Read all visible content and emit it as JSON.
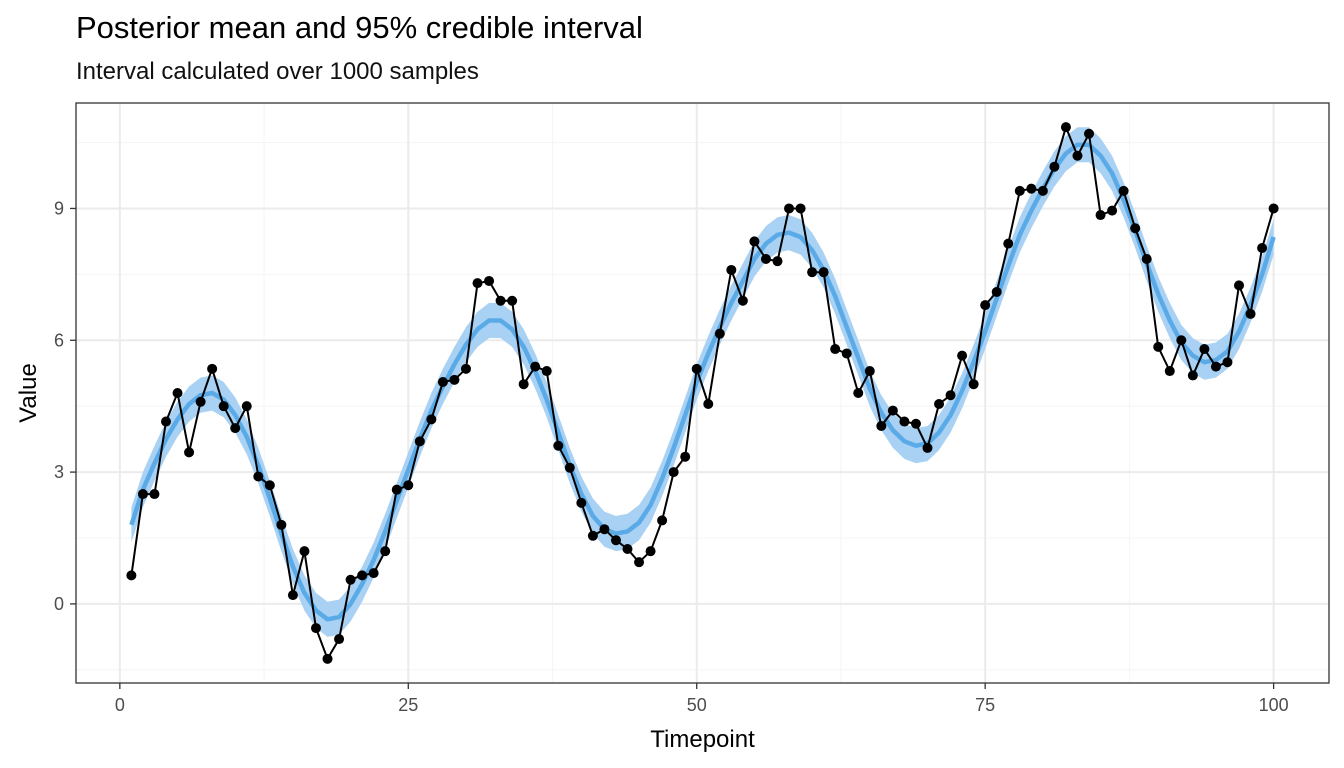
{
  "chart_data": {
    "type": "line",
    "title": "Posterior mean and 95% credible interval",
    "subtitle": "Interval calculated over 1000 samples",
    "xlabel": "Timepoint",
    "ylabel": "Value",
    "xlim": [
      -3.8,
      104.8
    ],
    "ylim": [
      -1.8,
      11.4
    ],
    "x_ticks": [
      0,
      25,
      50,
      75,
      100
    ],
    "y_ticks": [
      0,
      3,
      6,
      9
    ],
    "grid": true,
    "theme": "black-and-white",
    "colors": {
      "observed": "#000000",
      "posterior_mean": "#5aaae8",
      "credible_band": "#a9d1f3",
      "panel_border": "#333333",
      "grid_major": "#ebebeb",
      "grid_minor": "#f5f5f5"
    },
    "series": [
      {
        "kind": "observed",
        "x": [
          1,
          2,
          3,
          4,
          5,
          6,
          7,
          8,
          9,
          10,
          11,
          12,
          13,
          14,
          15,
          16,
          17,
          18,
          19,
          20,
          21,
          22,
          23,
          24,
          25,
          26,
          27,
          28,
          29,
          30,
          31,
          32,
          33,
          34,
          35,
          36,
          37,
          38,
          39,
          40,
          41,
          42,
          43,
          44,
          45,
          46,
          47,
          48,
          49,
          50,
          51,
          52,
          53,
          54,
          55,
          56,
          57,
          58,
          59,
          60,
          61,
          62,
          63,
          64,
          65,
          66,
          67,
          68,
          69,
          70,
          71,
          72,
          73,
          74,
          75,
          76,
          77,
          78,
          79,
          80,
          81,
          82,
          83,
          84,
          85,
          86,
          87,
          88,
          89,
          90,
          91,
          92,
          93,
          94,
          95,
          96,
          97,
          98,
          99,
          100
        ],
        "y": [
          0.65,
          2.5,
          2.5,
          4.15,
          4.8,
          3.45,
          4.6,
          5.35,
          4.5,
          4.0,
          4.5,
          2.9,
          2.7,
          1.8,
          0.2,
          1.2,
          -0.55,
          -1.25,
          -0.8,
          0.55,
          0.65,
          0.7,
          1.2,
          2.6,
          2.7,
          3.7,
          4.2,
          5.05,
          5.1,
          5.35,
          7.3,
          7.35,
          6.9,
          6.9,
          5.0,
          5.4,
          5.3,
          3.6,
          3.1,
          2.3,
          1.55,
          1.7,
          1.45,
          1.25,
          0.95,
          1.2,
          1.9,
          3.0,
          3.35,
          5.35,
          4.55,
          6.15,
          7.6,
          6.9,
          8.25,
          7.85,
          7.8,
          9.0,
          9.0,
          7.55,
          7.55,
          5.8,
          5.7,
          4.8,
          5.3,
          4.05,
          4.4,
          4.15,
          4.1,
          3.55,
          4.55,
          4.75,
          5.65,
          5.0,
          6.8,
          7.1,
          8.2,
          9.4,
          9.45,
          9.4,
          9.95,
          10.85,
          10.2,
          10.7,
          8.85,
          8.95,
          9.4,
          8.55,
          7.85,
          5.85,
          5.3,
          6.0,
          5.2,
          5.8,
          5.4,
          5.5,
          7.25,
          6.6,
          8.1,
          9.0
        ]
      },
      {
        "kind": "posterior-mean",
        "x": [
          1,
          2,
          3,
          4,
          5,
          6,
          7,
          8,
          9,
          10,
          11,
          12,
          13,
          14,
          15,
          16,
          17,
          18,
          19,
          20,
          21,
          22,
          23,
          24,
          25,
          26,
          27,
          28,
          29,
          30,
          31,
          32,
          33,
          34,
          35,
          36,
          37,
          38,
          39,
          40,
          41,
          42,
          43,
          44,
          45,
          46,
          47,
          48,
          49,
          50,
          51,
          52,
          53,
          54,
          55,
          56,
          57,
          58,
          59,
          60,
          61,
          62,
          63,
          64,
          65,
          66,
          67,
          68,
          69,
          70,
          71,
          72,
          73,
          74,
          75,
          76,
          77,
          78,
          79,
          80,
          81,
          82,
          83,
          84,
          85,
          86,
          87,
          88,
          89,
          90,
          91,
          92,
          93,
          94,
          95,
          96,
          97,
          98,
          99,
          100
        ],
        "y": [
          1.8,
          2.6,
          3.2,
          3.75,
          4.2,
          4.55,
          4.75,
          4.8,
          4.65,
          4.3,
          3.8,
          3.15,
          2.4,
          1.6,
          0.85,
          0.25,
          -0.15,
          -0.35,
          -0.3,
          0.0,
          0.45,
          1.0,
          1.65,
          2.35,
          3.05,
          3.75,
          4.4,
          4.95,
          5.45,
          5.9,
          6.25,
          6.45,
          6.45,
          6.25,
          5.85,
          5.3,
          4.65,
          3.9,
          3.15,
          2.5,
          2.0,
          1.7,
          1.6,
          1.65,
          1.85,
          2.25,
          2.85,
          3.55,
          4.3,
          5.05,
          5.7,
          6.3,
          6.85,
          7.35,
          7.85,
          8.2,
          8.4,
          8.45,
          8.35,
          8.05,
          7.6,
          7.0,
          6.3,
          5.6,
          4.9,
          4.35,
          3.95,
          3.7,
          3.6,
          3.65,
          3.9,
          4.3,
          4.85,
          5.5,
          6.2,
          6.95,
          7.7,
          8.4,
          8.95,
          9.45,
          9.9,
          10.25,
          10.45,
          10.45,
          10.2,
          9.8,
          9.2,
          8.5,
          7.75,
          7.05,
          6.45,
          5.95,
          5.65,
          5.5,
          5.55,
          5.75,
          6.2,
          6.8,
          7.5,
          8.35
        ]
      },
      {
        "kind": "credible-interval",
        "level": 0.95,
        "x": [
          1,
          2,
          3,
          4,
          5,
          6,
          7,
          8,
          9,
          10,
          11,
          12,
          13,
          14,
          15,
          16,
          17,
          18,
          19,
          20,
          21,
          22,
          23,
          24,
          25,
          26,
          27,
          28,
          29,
          30,
          31,
          32,
          33,
          34,
          35,
          36,
          37,
          38,
          39,
          40,
          41,
          42,
          43,
          44,
          45,
          46,
          47,
          48,
          49,
          50,
          51,
          52,
          53,
          54,
          55,
          56,
          57,
          58,
          59,
          60,
          61,
          62,
          63,
          64,
          65,
          66,
          67,
          68,
          69,
          70,
          71,
          72,
          73,
          74,
          75,
          76,
          77,
          78,
          79,
          80,
          81,
          82,
          83,
          84,
          85,
          86,
          87,
          88,
          89,
          90,
          91,
          92,
          93,
          94,
          95,
          96,
          97,
          98,
          99,
          100
        ],
        "lower": [
          1.4,
          2.2,
          2.8,
          3.35,
          3.8,
          4.15,
          4.35,
          4.4,
          4.25,
          3.9,
          3.4,
          2.75,
          2.0,
          1.2,
          0.45,
          -0.15,
          -0.55,
          -0.75,
          -0.7,
          -0.4,
          0.05,
          0.6,
          1.25,
          1.95,
          2.65,
          3.35,
          4.0,
          4.55,
          5.05,
          5.5,
          5.85,
          6.05,
          6.05,
          5.85,
          5.45,
          4.9,
          4.25,
          3.5,
          2.75,
          2.1,
          1.6,
          1.3,
          1.2,
          1.25,
          1.45,
          1.85,
          2.45,
          3.15,
          3.9,
          4.65,
          5.3,
          5.9,
          6.45,
          6.95,
          7.45,
          7.8,
          8.0,
          8.05,
          7.95,
          7.65,
          7.2,
          6.6,
          5.9,
          5.2,
          4.5,
          3.95,
          3.55,
          3.3,
          3.2,
          3.25,
          3.5,
          3.9,
          4.45,
          5.1,
          5.8,
          6.55,
          7.3,
          8.0,
          8.55,
          9.05,
          9.5,
          9.85,
          10.05,
          10.05,
          9.8,
          9.4,
          8.8,
          8.1,
          7.35,
          6.65,
          6.05,
          5.55,
          5.25,
          5.1,
          5.15,
          5.35,
          5.8,
          6.4,
          7.1,
          7.95
        ],
        "upper": [
          2.2,
          3.0,
          3.6,
          4.15,
          4.6,
          4.95,
          5.15,
          5.2,
          5.05,
          4.7,
          4.2,
          3.55,
          2.8,
          2.0,
          1.25,
          0.65,
          0.25,
          0.05,
          0.1,
          0.4,
          0.85,
          1.4,
          2.05,
          2.75,
          3.45,
          4.15,
          4.8,
          5.35,
          5.85,
          6.3,
          6.65,
          6.85,
          6.85,
          6.65,
          6.25,
          5.7,
          5.05,
          4.3,
          3.55,
          2.9,
          2.4,
          2.1,
          2.0,
          2.05,
          2.25,
          2.65,
          3.25,
          3.95,
          4.7,
          5.45,
          6.1,
          6.7,
          7.25,
          7.75,
          8.25,
          8.6,
          8.8,
          8.85,
          8.75,
          8.45,
          8.0,
          7.4,
          6.7,
          6.0,
          5.3,
          4.75,
          4.35,
          4.1,
          4.0,
          4.05,
          4.3,
          4.7,
          5.25,
          5.9,
          6.6,
          7.35,
          8.1,
          8.8,
          9.35,
          9.85,
          10.3,
          10.65,
          10.85,
          10.85,
          10.6,
          10.2,
          9.6,
          8.9,
          8.15,
          7.45,
          6.85,
          6.35,
          6.05,
          5.9,
          5.95,
          6.15,
          6.6,
          7.2,
          7.9,
          8.75
        ]
      }
    ]
  }
}
